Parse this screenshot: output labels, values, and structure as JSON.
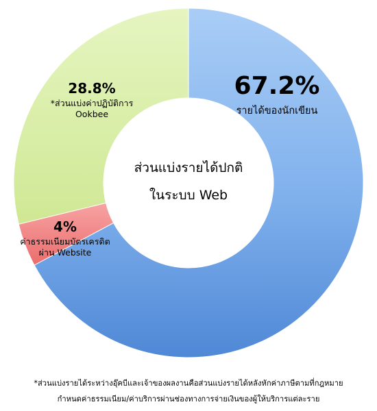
{
  "chart_data": {
    "type": "pie",
    "donut": true,
    "center_label": [
      "ส่วนแบ่งรายได้ปกติ",
      "ในระบบ Web"
    ],
    "slices": [
      {
        "value": 67.2,
        "value_label": "67.2%",
        "label": [
          "รายได้ของนักเขียน"
        ],
        "color": "#5b94dc"
      },
      {
        "value": 4,
        "value_label": "4%",
        "label": [
          "ค่าธรรมเนียมบัตรเครดิต",
          "ผ่าน Website"
        ],
        "color": "#f07f7f"
      },
      {
        "value": 28.8,
        "value_label": "28.8%",
        "label": [
          "*ส่วนแบ่งค่าปฏิบัติการ",
          "Ookbee"
        ],
        "color": "#d5ec9d"
      }
    ]
  },
  "footnote": [
    "*ส่วนแบ่งรายได้ระหว่างอุ๊คบีและเจ้าของผลงานคือส่วนแบ่งรายได้หลังหักค่าภาษีตามที่กฎหมาย",
    "กำหนดค่าธรรมเนียม/ค่าบริการผ่านช่องทางการจ่ายเงินของผู้ให้บริการแต่ละราย"
  ]
}
